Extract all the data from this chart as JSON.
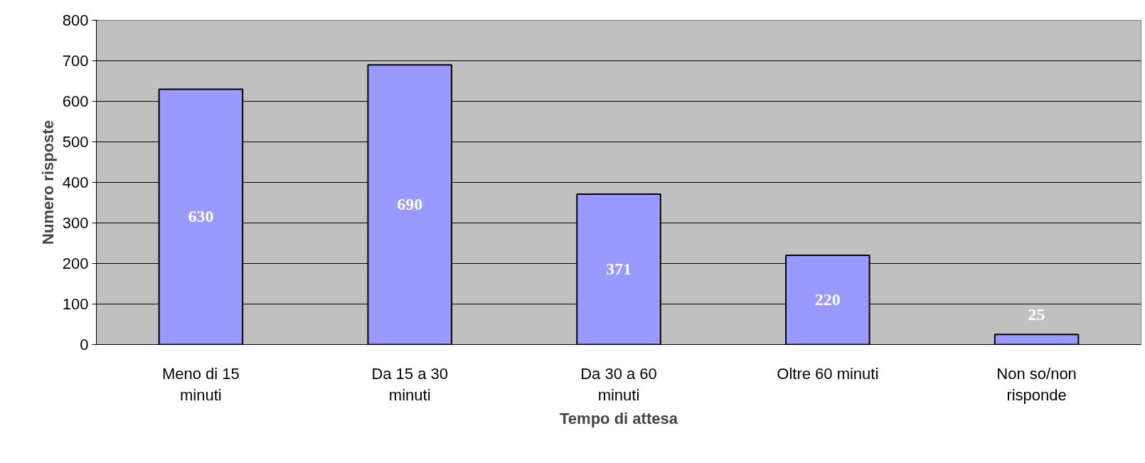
{
  "chart_data": {
    "type": "bar",
    "categories": [
      "Meno di 15 minuti",
      "Da 15 a 30 minuti",
      "Da 30 a 60 minuti",
      "Oltre 60 minuti",
      "Non so/non risponde"
    ],
    "values": [
      630,
      690,
      371,
      220,
      25
    ],
    "color": "#9999ff",
    "xlabel": "Tempo di attesa",
    "ylabel": "Numero risposte",
    "ylim": [
      0,
      800
    ],
    "yticks": [
      0,
      100,
      200,
      300,
      400,
      500,
      600,
      700,
      800
    ],
    "grid": "y",
    "data_labels": true
  }
}
